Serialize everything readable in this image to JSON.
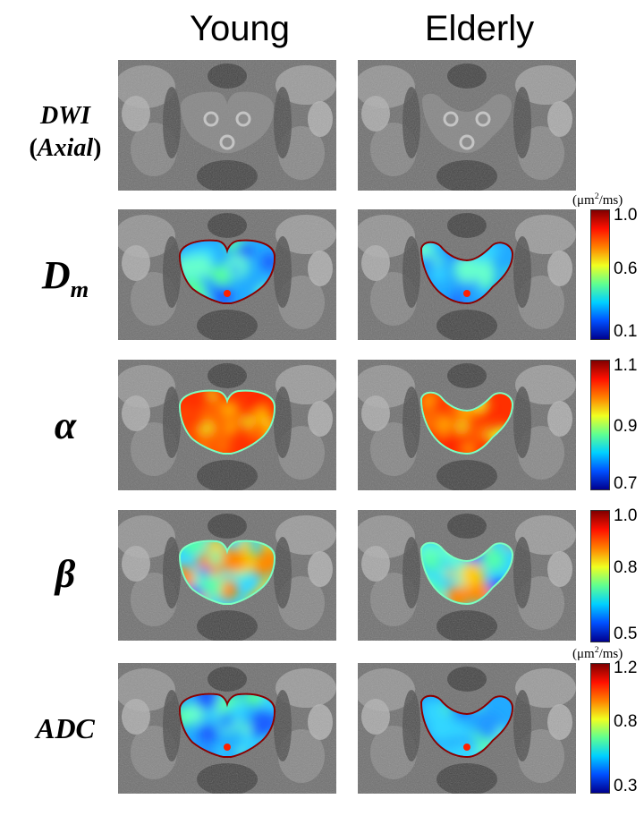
{
  "columns": {
    "young": "Young",
    "elderly": "Elderly"
  },
  "rows": {
    "dwi": {
      "label_line1": "DWI",
      "label_line2_open": "(",
      "label_line2_text": "Axial",
      "label_line2_close": ")"
    },
    "dm": {
      "label_main": "D",
      "label_sub": "m"
    },
    "alpha": {
      "label": "α"
    },
    "beta": {
      "label": "β"
    },
    "adc": {
      "label": "ADC"
    }
  },
  "colorbars": {
    "dm": {
      "unit_prefix": "(μm",
      "unit_exp": "2",
      "unit_suffix": "/ms)",
      "max": "1.0",
      "mid": "0.6",
      "min": "0.1"
    },
    "alpha": {
      "max": "1.1",
      "mid": "0.9",
      "min": "0.7"
    },
    "beta": {
      "max": "1.0",
      "mid": "0.8",
      "min": "0.5"
    },
    "adc": {
      "unit_prefix": "(μm",
      "unit_exp": "2",
      "unit_suffix": "/ms)",
      "max": "1.2",
      "mid": "0.8",
      "min": "0.3"
    }
  },
  "colormap": [
    "#00008f",
    "#0050ff",
    "#00d0ff",
    "#60ff90",
    "#f0ff20",
    "#ff8000",
    "#ff1000",
    "#800000"
  ]
}
